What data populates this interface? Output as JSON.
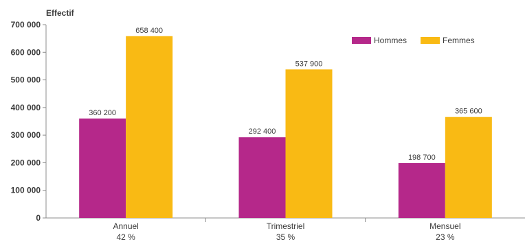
{
  "chart_data": {
    "type": "bar",
    "ylabel": "Effectif",
    "ylim": [
      0,
      700000
    ],
    "yticks": [
      "0",
      "100 000",
      "200 000",
      "300 000",
      "400 000",
      "500 000",
      "600 000",
      "700 000"
    ],
    "categories": [
      "Annuel",
      "Trimestriel",
      "Mensuel"
    ],
    "category_shares": [
      "42 %",
      "35 %",
      "23 %"
    ],
    "series": [
      {
        "name": "Hommes",
        "color": "#b5288a",
        "values": [
          360200,
          292400,
          198700
        ],
        "labels": [
          "360 200",
          "292 400",
          "198 700"
        ]
      },
      {
        "name": "Femmes",
        "color": "#f9ba14",
        "values": [
          658400,
          537900,
          365600
        ],
        "labels": [
          "658 400",
          "537 900",
          "365 600"
        ]
      }
    ],
    "legend_position": "top-right",
    "grid": false
  }
}
